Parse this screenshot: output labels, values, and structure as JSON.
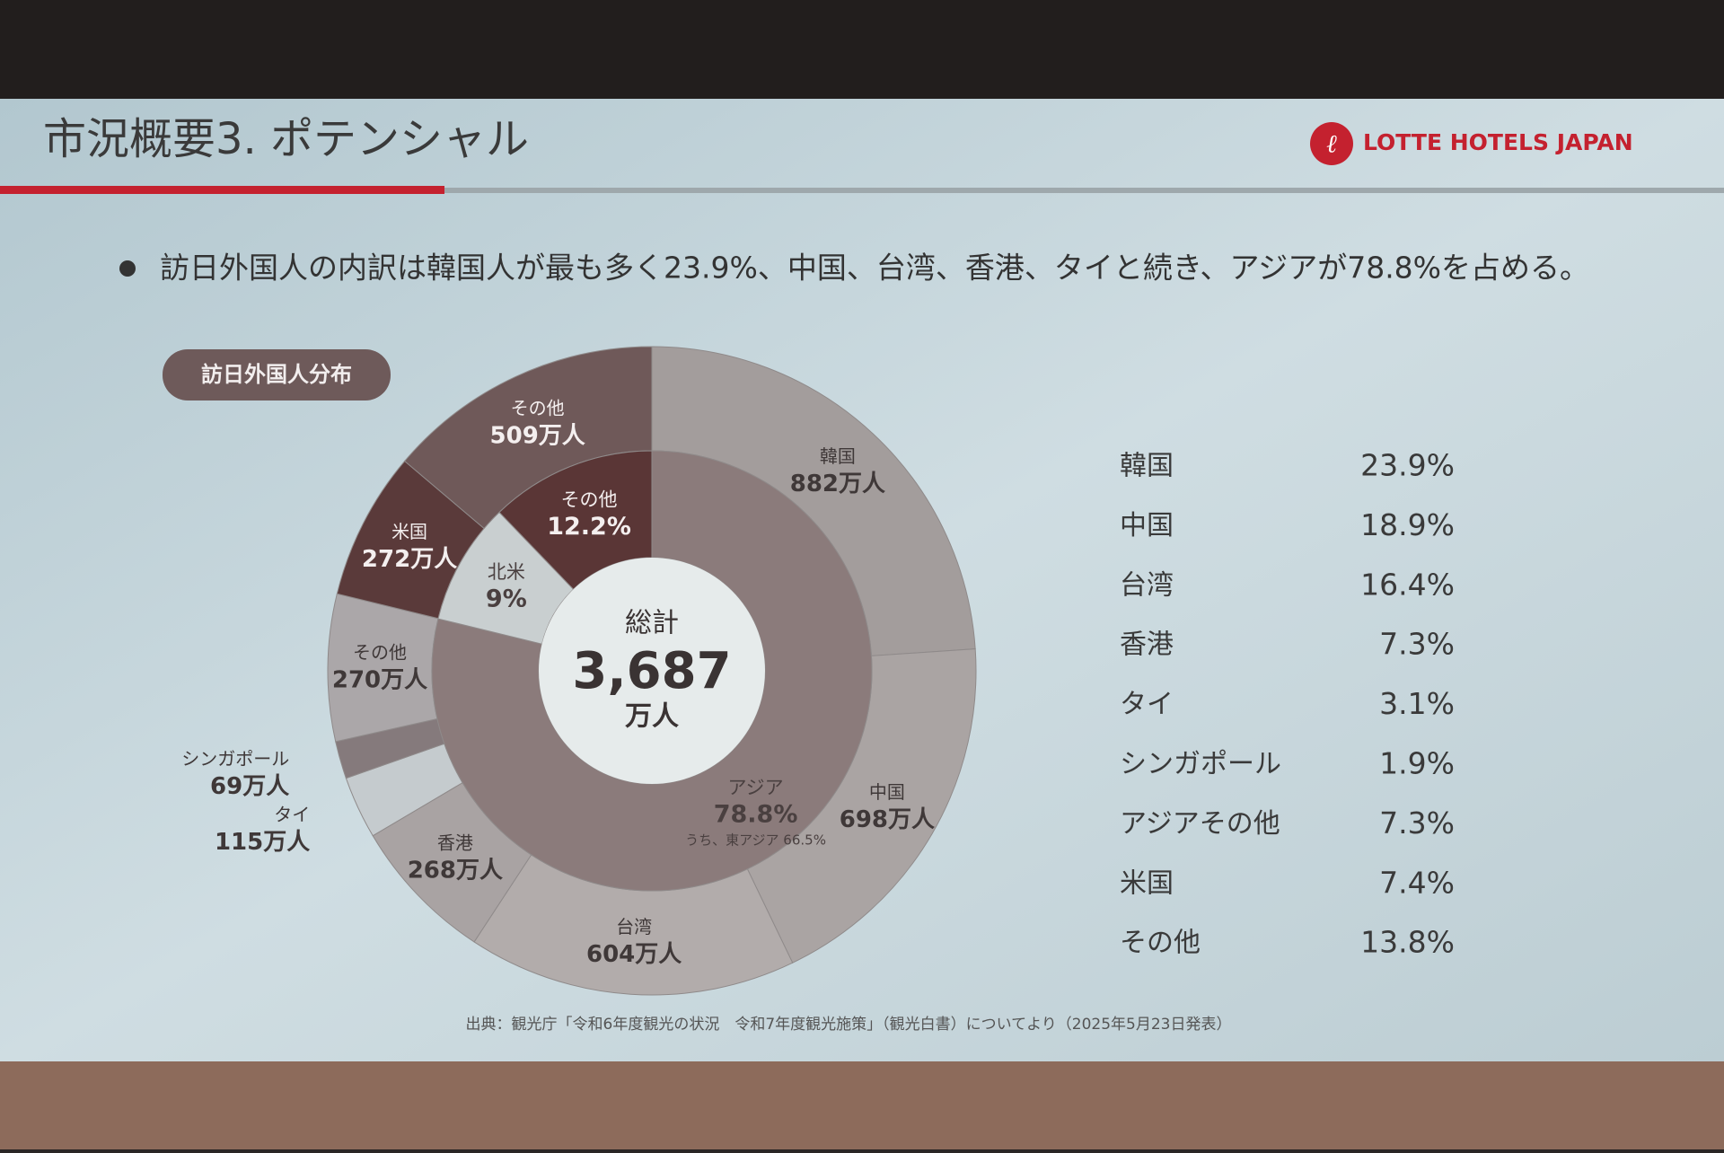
{
  "header": {
    "title": "市況概要3. ポテンシャル",
    "logo": "LOTTE HOTELS JAPAN"
  },
  "bullet": "訪日外国人の内訳は韓国人が最も多く23.9%、中国、台湾、香港、タイと続き、アジアが78.8%を占める。",
  "chart_data": {
    "type": "sunburst",
    "title": "訪日外国人分布",
    "center": {
      "label": "総計",
      "value": 3687,
      "value_label": "3,687",
      "unit": "万人"
    },
    "inner": {
      "categories": [
        "アジア",
        "北米",
        "その他"
      ],
      "values": [
        78.8,
        9,
        12.2
      ],
      "value_labels": [
        "78.8%",
        "9%",
        "12.2%"
      ],
      "colors": [
        "#8b7b7b",
        "#c9cfd0",
        "#5a3636"
      ],
      "note": "うち、東アジア 66.5%"
    },
    "outer": {
      "categories": [
        "韓国",
        "中国",
        "台湾",
        "香港",
        "タイ",
        "シンガポール",
        "その他",
        "米国",
        "その他"
      ],
      "values": [
        882,
        698,
        604,
        268,
        115,
        69,
        270,
        272,
        509
      ],
      "value_labels": [
        "882万人",
        "698万人",
        "604万人",
        "268万人",
        "115万人",
        "69万人",
        "270万人",
        "272万人",
        "509万人"
      ],
      "colors": [
        "#a39d9c",
        "#aaa4a3",
        "#b2acab",
        "#a9a3a3",
        "#c5cbce",
        "#857a7c",
        "#aba7a9",
        "#5a3a3a",
        "#6f5959"
      ]
    }
  },
  "table": {
    "rows": [
      [
        "韓国",
        "23.9%"
      ],
      [
        "中国",
        "18.9%"
      ],
      [
        "台湾",
        "16.4%"
      ],
      [
        "香港",
        "7.3%"
      ],
      [
        "タイ",
        "3.1%"
      ],
      [
        "シンガポール",
        "1.9%"
      ],
      [
        "アジアその他",
        "7.3%"
      ],
      [
        "米国",
        "7.4%"
      ],
      [
        "その他",
        "13.8%"
      ]
    ]
  },
  "source": "出典：観光庁「令和6年度観光の状況　令和7年度観光施策」（観光白書）についてより（2025年5月23日発表）"
}
